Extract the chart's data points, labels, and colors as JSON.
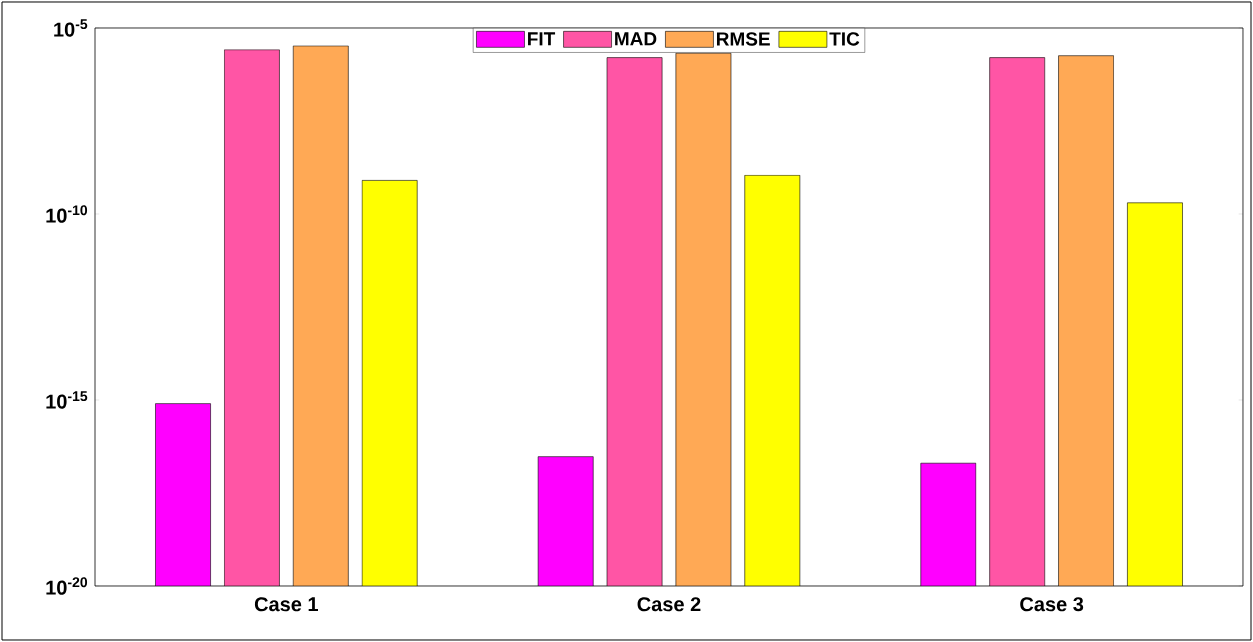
{
  "chart_data": {
    "type": "bar",
    "categories": [
      "Case 1",
      "Case 2",
      "Case 3"
    ],
    "series": [
      {
        "name": "FIT",
        "color": "#ff00ff",
        "values": [
          8e-16,
          3e-17,
          2e-17
        ]
      },
      {
        "name": "MAD",
        "color": "#ff55a5",
        "values": [
          2.6e-06,
          1.6e-06,
          1.6e-06
        ]
      },
      {
        "name": "RMSE",
        "color": "#ffa955",
        "values": [
          3.3e-06,
          2.1e-06,
          1.8e-06
        ]
      },
      {
        "name": "TIC",
        "color": "#ffff00",
        "values": [
          8e-10,
          1.1e-09,
          2e-10
        ]
      }
    ],
    "log": "y",
    "ylim": [
      1e-20,
      1e-05
    ],
    "yticks": [
      {
        "value": 1e-20,
        "label": "10$^{-20}$"
      },
      {
        "value": 1e-15,
        "label": "10$^{-15}$"
      },
      {
        "value": 1e-10,
        "label": "10$^{-10}$"
      },
      {
        "value": 1e-05,
        "label": "10$^{-5}$"
      }
    ],
    "legend": "top"
  }
}
